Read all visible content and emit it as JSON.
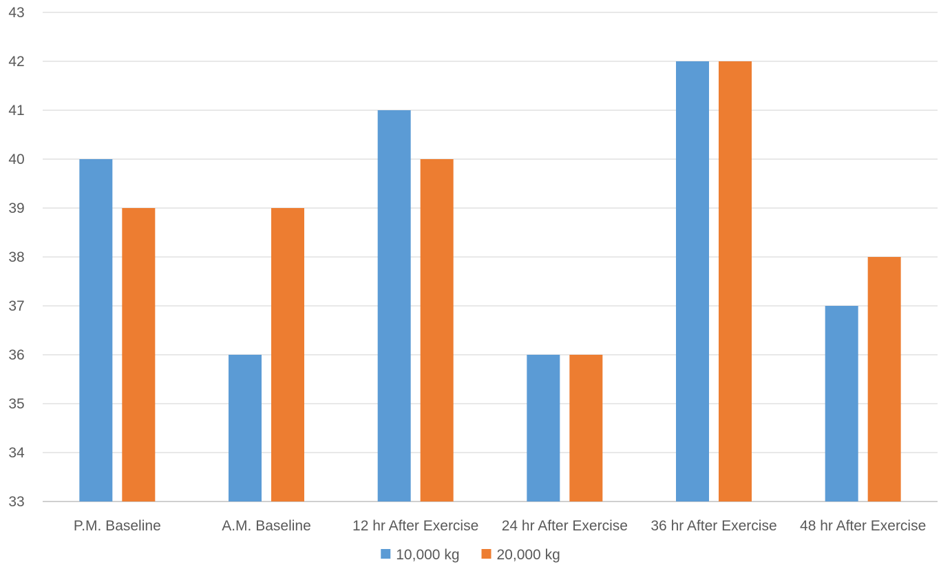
{
  "chart_data": {
    "type": "bar",
    "title": "",
    "xlabel": "",
    "ylabel": "",
    "categories": [
      "P.M. Baseline",
      "A.M. Baseline",
      "12 hr After Exercise",
      "24 hr After Exercise",
      "36 hr After Exercise",
      "48 hr After Exercise"
    ],
    "series": [
      {
        "name": "10,000 kg",
        "color": "#5b9bd5",
        "values": [
          40,
          36,
          41,
          36,
          42,
          37
        ]
      },
      {
        "name": "20,000 kg",
        "color": "#ed7d31",
        "values": [
          39,
          39,
          40,
          36,
          42,
          38
        ]
      }
    ],
    "ylim": [
      33,
      43
    ],
    "yticks": [
      33,
      34,
      35,
      36,
      37,
      38,
      39,
      40,
      41,
      42,
      43
    ],
    "grid": true,
    "legend_position": "bottom"
  }
}
